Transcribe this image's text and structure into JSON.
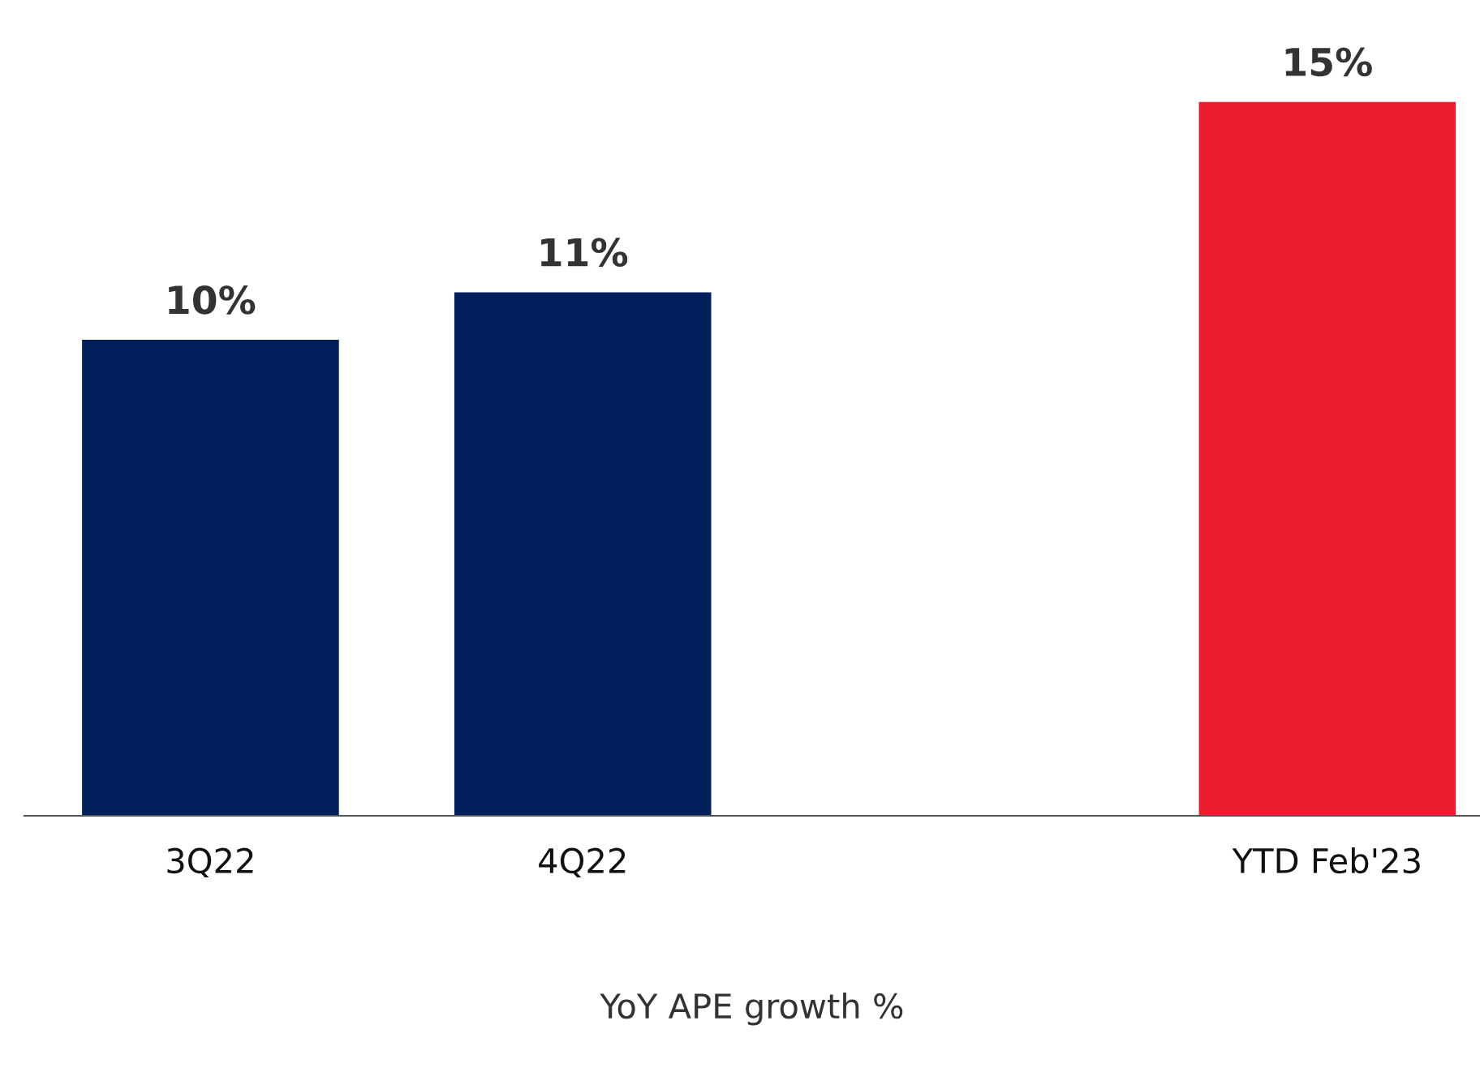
{
  "chart_data": {
    "type": "bar",
    "xlabel": "YoY APE growth %",
    "categories": [
      "3Q22",
      "4Q22",
      null,
      "YTD Feb'23"
    ],
    "values": [
      10,
      11,
      null,
      15
    ],
    "colors": [
      "#001f5b",
      "#001f5b",
      null,
      "#ed1c2e"
    ],
    "value_labels": [
      "10%",
      "11%",
      null,
      "15%"
    ],
    "grid": false,
    "legend": false
  }
}
